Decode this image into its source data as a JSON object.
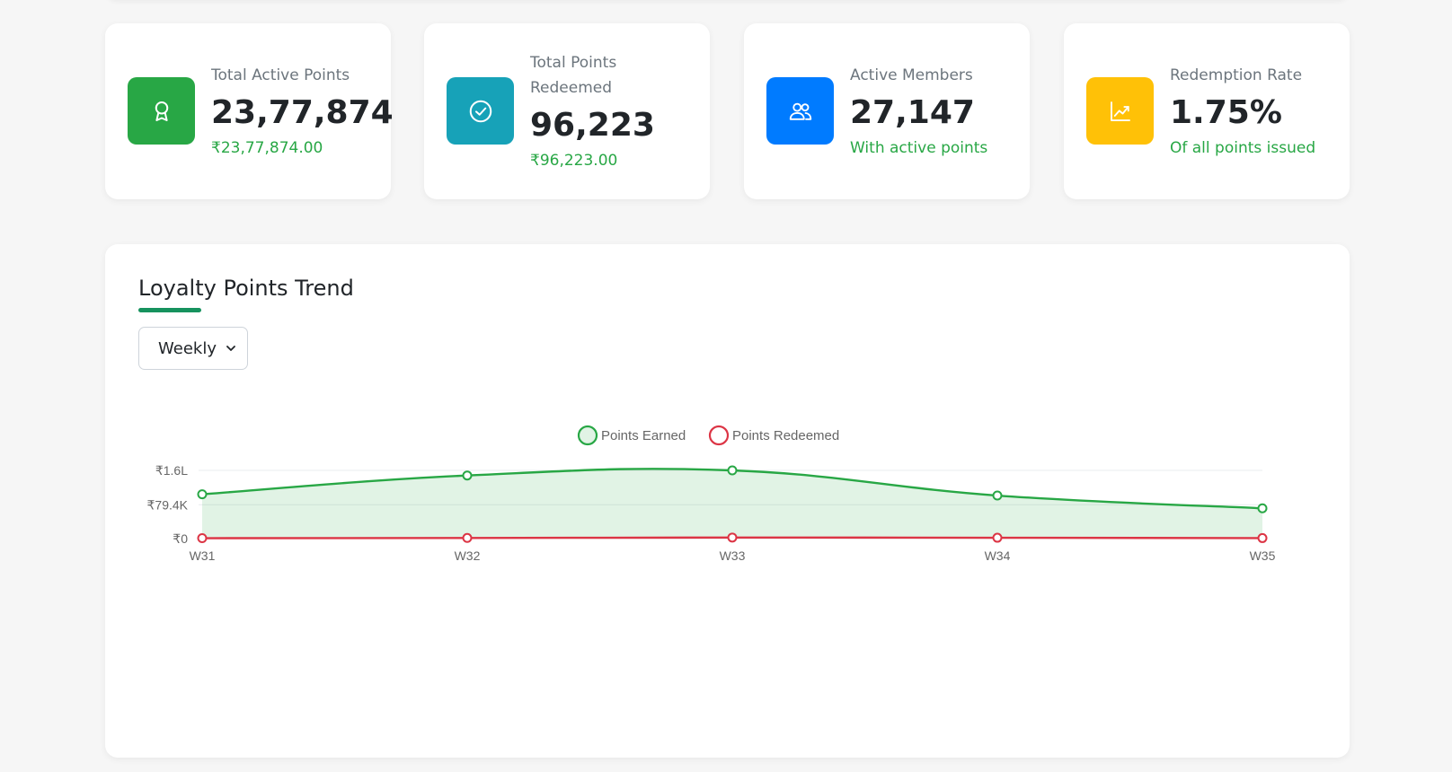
{
  "stats": [
    {
      "label": "Total Active Points",
      "value": "23,77,874",
      "sub": "₹23,77,874.00",
      "color": "#28a745",
      "icon": "award-icon"
    },
    {
      "label": "Total Points Redeemed",
      "value": "96,223",
      "sub": "₹96,223.00",
      "color": "#17a2b8",
      "icon": "check-circle-icon"
    },
    {
      "label": "Active Members",
      "value": "27,147",
      "sub": "With active points",
      "color": "#007bff",
      "icon": "people-icon"
    },
    {
      "label": "Redemption Rate",
      "value": "1.75%",
      "sub": "Of all points issued",
      "color": "#ffc107",
      "icon": "graph-up-icon"
    }
  ],
  "chart_section": {
    "title": "Loyalty Points Trend",
    "period_value": "Weekly"
  },
  "chart_data": {
    "type": "line",
    "categories": [
      "W31",
      "W32",
      "W33",
      "W34",
      "W35"
    ],
    "series": [
      {
        "name": "Points Earned",
        "values": [
          104000,
          148000,
          160000,
          101000,
          71000
        ],
        "color": "#28a745",
        "fill": "rgba(40,167,69,0.14)"
      },
      {
        "name": "Points Redeemed",
        "values": [
          1000,
          1500,
          2500,
          2000,
          1200
        ],
        "color": "#dc3545"
      }
    ],
    "y_ticks": [
      {
        "value": 0,
        "label": "₹0"
      },
      {
        "value": 79400,
        "label": "₹79.4K"
      },
      {
        "value": 160000,
        "label": "₹1.6L"
      }
    ],
    "ylim": [
      0,
      160000
    ],
    "grid": true,
    "legend": "top-center"
  }
}
